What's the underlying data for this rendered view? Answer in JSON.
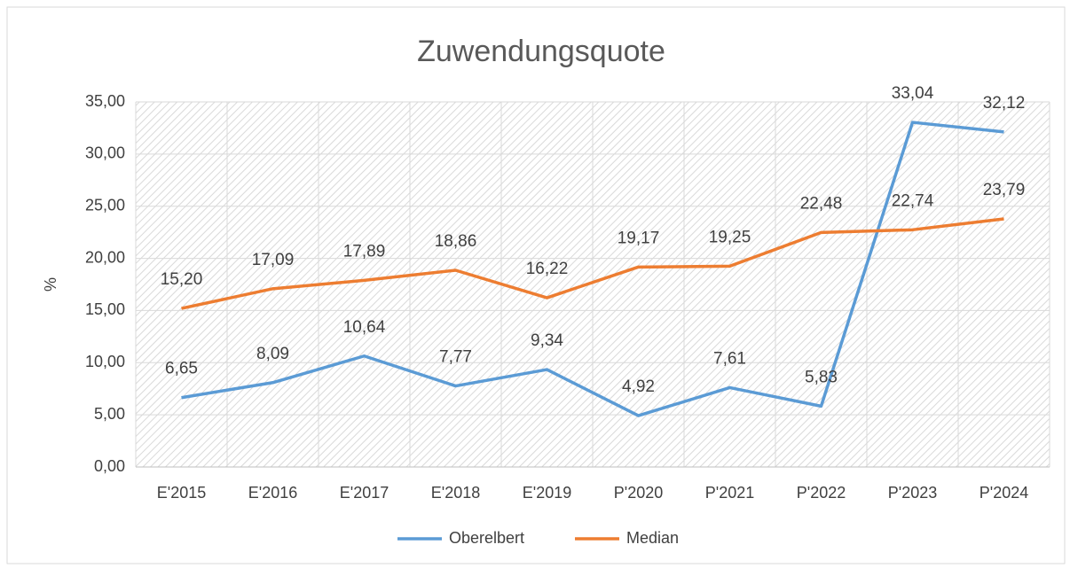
{
  "chart_data": {
    "type": "line",
    "title": "Zuwendungsquote",
    "ylabel": "%",
    "categories": [
      "E'2015",
      "E'2016",
      "E'2017",
      "E'2018",
      "E'2019",
      "P'2020",
      "P'2021",
      "P'2022",
      "P'2023",
      "P'2024"
    ],
    "series": [
      {
        "name": "Oberelbert",
        "color": "#5b9bd5",
        "values": [
          6.65,
          8.09,
          10.64,
          7.77,
          9.34,
          4.92,
          7.61,
          5.83,
          33.04,
          32.12
        ],
        "value_labels": [
          "6,65",
          "8,09",
          "10,64",
          "7,77",
          "9,34",
          "4,92",
          "7,61",
          "5,83",
          "33,04",
          "32,12"
        ]
      },
      {
        "name": "Median",
        "color": "#ed7d31",
        "values": [
          15.2,
          17.09,
          17.89,
          18.86,
          16.22,
          19.17,
          19.25,
          22.48,
          22.74,
          23.79
        ],
        "value_labels": [
          "15,20",
          "17,09",
          "17,89",
          "18,86",
          "16,22",
          "19,17",
          "19,25",
          "22,48",
          "22,74",
          "23,79"
        ]
      }
    ],
    "ylim": [
      0,
      35
    ],
    "yticks": [
      {
        "value": 0,
        "label": "0,00"
      },
      {
        "value": 5,
        "label": "5,00"
      },
      {
        "value": 10,
        "label": "10,00"
      },
      {
        "value": 15,
        "label": "15,00"
      },
      {
        "value": 20,
        "label": "20,00"
      },
      {
        "value": 25,
        "label": "25,00"
      },
      {
        "value": 30,
        "label": "30,00"
      },
      {
        "value": 35,
        "label": "35,00"
      }
    ],
    "grid": true,
    "legend": "bottom"
  }
}
